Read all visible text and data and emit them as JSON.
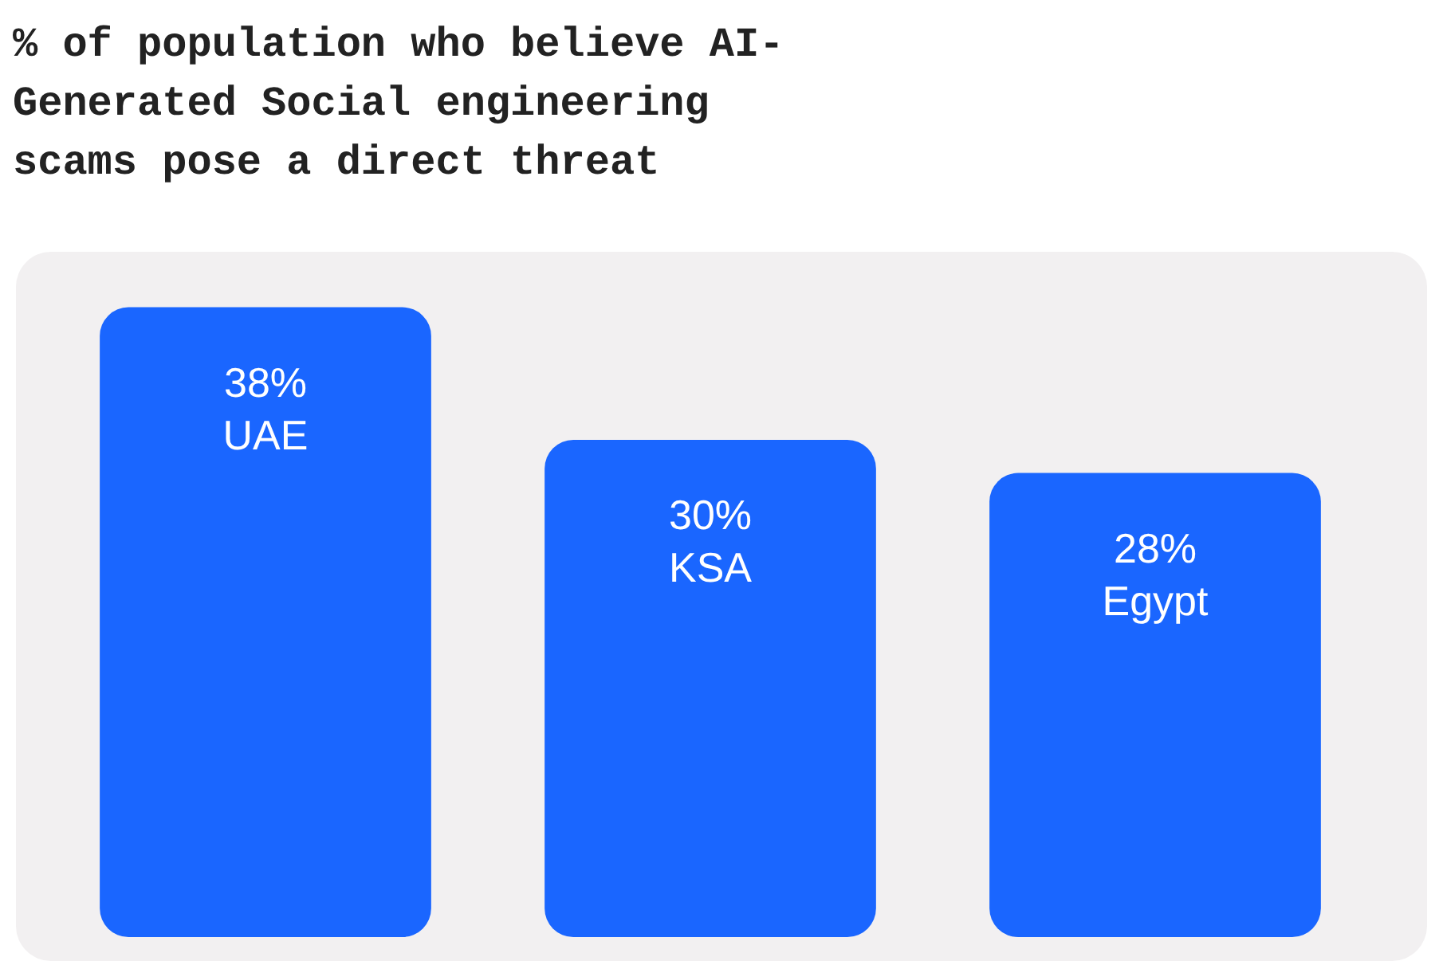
{
  "chart_data": {
    "type": "bar",
    "title": "% of population who believe AI-Generated Social engineering scams pose a direct threat",
    "categories": [
      "UAE",
      "KSA",
      "Egypt"
    ],
    "values": [
      38,
      30,
      28
    ],
    "value_labels": [
      "38%",
      "30%",
      "28%"
    ],
    "color": "#1a66ff",
    "legend": false
  }
}
